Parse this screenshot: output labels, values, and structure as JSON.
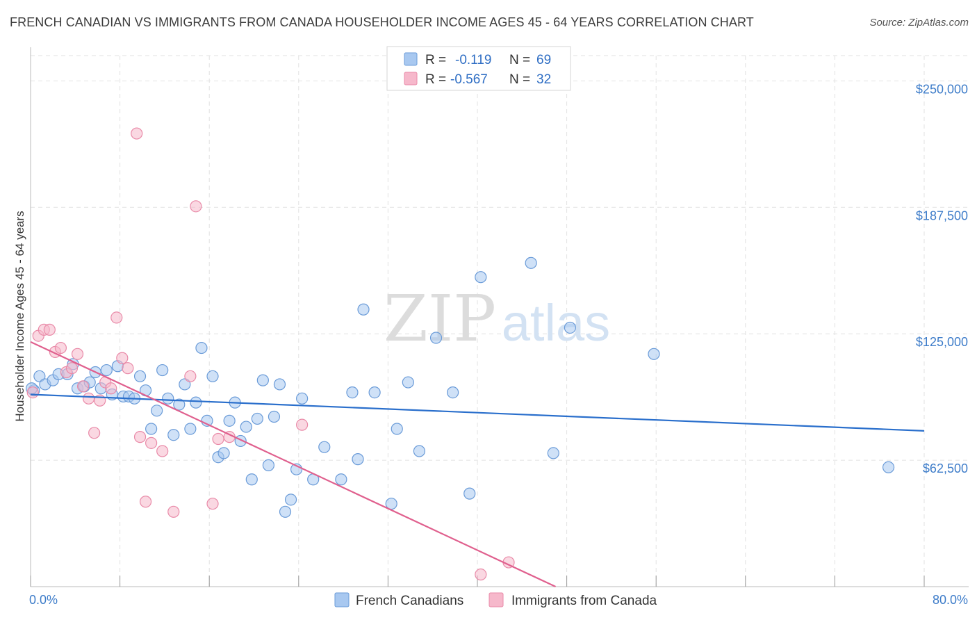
{
  "title": "FRENCH CANADIAN VS IMMIGRANTS FROM CANADA HOUSEHOLDER INCOME AGES 45 - 64 YEARS CORRELATION CHART",
  "source": "Source: ZipAtlas.com",
  "watermark": {
    "zip": "ZIP",
    "atlas": "atlas"
  },
  "colors": {
    "blue_fill": "#a8c8f0",
    "blue_stroke": "#6a9bd8",
    "blue_line": "#2a6fcc",
    "pink_fill": "#f6b8cb",
    "pink_stroke": "#e98aa8",
    "pink_line": "#e0608e",
    "tick_text": "#3d7cc9"
  },
  "legend": {
    "rows": [
      {
        "r_label": "R =",
        "r_value": "-0.119",
        "n_label": "N =",
        "n_value": "69"
      },
      {
        "r_label": "R =",
        "r_value": "-0.567",
        "n_label": "N =",
        "n_value": "32"
      }
    ]
  },
  "chart_data": {
    "type": "scatter",
    "title": "FRENCH CANADIAN VS IMMIGRANTS FROM CANADA HOUSEHOLDER INCOME AGES 45 - 64 YEARS CORRELATION CHART",
    "xlabel": "",
    "ylabel": "Householder Income Ages 45 - 64 years",
    "xlim": [
      0,
      80
    ],
    "ylim": [
      0,
      262500
    ],
    "x_tick_labels": [
      "0.0%",
      "80.0%"
    ],
    "y_ticks": [
      62500,
      125000,
      187500,
      250000
    ],
    "y_tick_labels": [
      "$62,500",
      "$125,000",
      "$187,500",
      "$250,000"
    ],
    "grid": true,
    "legend_position": "top-center",
    "series": [
      {
        "name": "French Canadians",
        "color": "#a8c8f0",
        "trend": {
          "x": [
            0,
            80
          ],
          "y": [
            95000,
            77000
          ]
        },
        "points": [
          [
            0.3,
            97000
          ],
          [
            0.8,
            104000
          ],
          [
            1.3,
            100000
          ],
          [
            2.0,
            102000
          ],
          [
            2.5,
            105000
          ],
          [
            3.3,
            105000
          ],
          [
            3.8,
            110000
          ],
          [
            4.2,
            98000
          ],
          [
            4.8,
            99000
          ],
          [
            5.3,
            101000
          ],
          [
            5.8,
            106000
          ],
          [
            6.3,
            98000
          ],
          [
            6.8,
            107000
          ],
          [
            7.3,
            95000
          ],
          [
            7.8,
            109000
          ],
          [
            8.3,
            94000
          ],
          [
            8.8,
            94000
          ],
          [
            9.3,
            93000
          ],
          [
            9.8,
            104000
          ],
          [
            10.3,
            97000
          ],
          [
            10.8,
            78000
          ],
          [
            11.3,
            87000
          ],
          [
            11.8,
            107000
          ],
          [
            12.3,
            93000
          ],
          [
            12.8,
            75000
          ],
          [
            13.3,
            90000
          ],
          [
            13.8,
            100000
          ],
          [
            14.3,
            78000
          ],
          [
            14.8,
            91000
          ],
          [
            15.3,
            118000
          ],
          [
            15.8,
            82000
          ],
          [
            16.3,
            104000
          ],
          [
            16.8,
            64000
          ],
          [
            17.3,
            66000
          ],
          [
            17.8,
            82000
          ],
          [
            18.3,
            91000
          ],
          [
            18.8,
            72000
          ],
          [
            19.3,
            79000
          ],
          [
            19.8,
            53000
          ],
          [
            20.3,
            83000
          ],
          [
            20.8,
            102000
          ],
          [
            21.3,
            60000
          ],
          [
            21.8,
            84000
          ],
          [
            22.3,
            100000
          ],
          [
            22.8,
            37000
          ],
          [
            23.3,
            43000
          ],
          [
            23.8,
            58000
          ],
          [
            24.3,
            93000
          ],
          [
            25.3,
            53000
          ],
          [
            26.3,
            69000
          ],
          [
            27.8,
            53000
          ],
          [
            28.8,
            96000
          ],
          [
            29.3,
            63000
          ],
          [
            29.8,
            137000
          ],
          [
            30.8,
            96000
          ],
          [
            32.3,
            41000
          ],
          [
            32.8,
            78000
          ],
          [
            33.8,
            101000
          ],
          [
            34.8,
            67000
          ],
          [
            36.3,
            123000
          ],
          [
            37.8,
            96000
          ],
          [
            39.3,
            46000
          ],
          [
            40.3,
            153000
          ],
          [
            44.8,
            160000
          ],
          [
            46.8,
            66000
          ],
          [
            48.3,
            128000
          ],
          [
            55.8,
            115000
          ],
          [
            76.8,
            59000
          ],
          [
            0.1,
            98000
          ]
        ]
      },
      {
        "name": "Immigrants from Canada",
        "color": "#f6b8cb",
        "trend": {
          "x": [
            0,
            47
          ],
          "y": [
            121000,
            0
          ]
        },
        "points": [
          [
            0.2,
            96000
          ],
          [
            0.7,
            124000
          ],
          [
            1.2,
            127000
          ],
          [
            1.7,
            127000
          ],
          [
            2.2,
            116000
          ],
          [
            2.7,
            118000
          ],
          [
            3.2,
            106000
          ],
          [
            3.7,
            108000
          ],
          [
            4.2,
            115000
          ],
          [
            4.7,
            99000
          ],
          [
            5.2,
            93000
          ],
          [
            5.7,
            76000
          ],
          [
            6.2,
            92000
          ],
          [
            6.7,
            101000
          ],
          [
            7.2,
            98000
          ],
          [
            7.7,
            133000
          ],
          [
            8.2,
            113000
          ],
          [
            8.7,
            108000
          ],
          [
            9.5,
            224000
          ],
          [
            9.8,
            74000
          ],
          [
            10.3,
            42000
          ],
          [
            10.8,
            71000
          ],
          [
            11.8,
            67000
          ],
          [
            12.8,
            37000
          ],
          [
            14.3,
            104000
          ],
          [
            14.8,
            188000
          ],
          [
            16.3,
            41000
          ],
          [
            16.8,
            73000
          ],
          [
            17.8,
            74000
          ],
          [
            24.3,
            80000
          ],
          [
            40.3,
            6000
          ],
          [
            42.8,
            12000
          ]
        ]
      }
    ]
  },
  "bottom_legend": {
    "blue_label": "French Canadians",
    "pink_label": "Immigrants from Canada"
  }
}
